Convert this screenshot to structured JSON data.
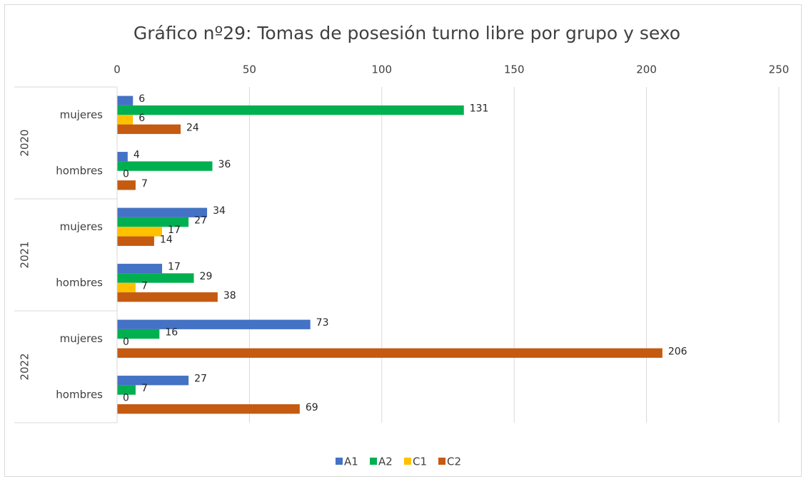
{
  "chart_data": {
    "type": "hbar",
    "title": "Gráfico nº29: Tomas de posesión turno libre por grupo y sexo",
    "groups": [
      "2020",
      "2021",
      "2022"
    ],
    "categories": [
      "mujeres",
      "hombres",
      "mujeres",
      "hombres",
      "mujeres",
      "hombres"
    ],
    "series": [
      {
        "name": "A1",
        "color": "#4472c4",
        "values": [
          6,
          4,
          34,
          17,
          73,
          27
        ]
      },
      {
        "name": "A2",
        "color": "#00b050",
        "values": [
          131,
          36,
          27,
          29,
          16,
          7
        ]
      },
      {
        "name": "C1",
        "color": "#ffc000",
        "values": [
          6,
          0,
          17,
          7,
          0,
          0
        ]
      },
      {
        "name": "C2",
        "color": "#c55a11",
        "values": [
          24,
          7,
          14,
          38,
          206,
          69
        ]
      }
    ],
    "xlim": [
      0,
      250
    ],
    "xticks": [
      0,
      50,
      100,
      150,
      200,
      250
    ],
    "grid": true,
    "legend": "bottom"
  }
}
